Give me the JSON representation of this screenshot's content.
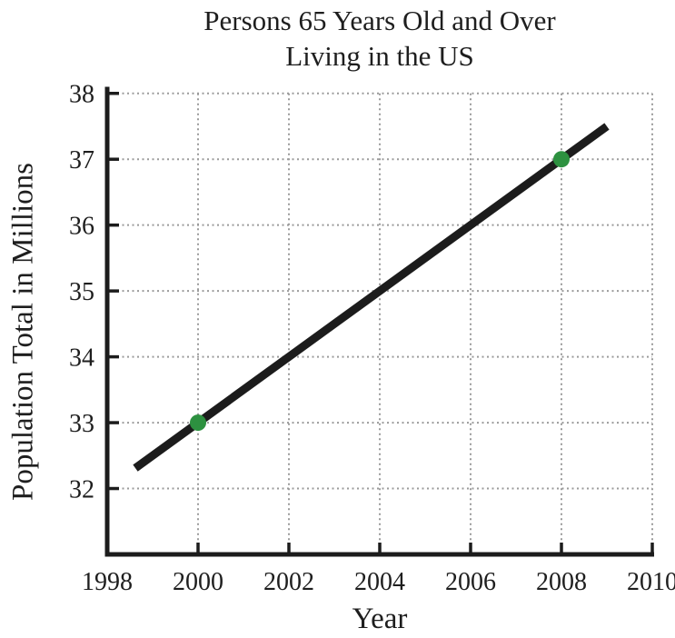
{
  "chart_data": {
    "type": "line",
    "title": "Persons 65 Years Old and Over Living in the US",
    "title_lines": [
      "Persons 65 Years Old and Over",
      "Living in the US"
    ],
    "xlabel": "Year",
    "ylabel": "Population Total in Millions",
    "xlim": [
      1998,
      2010
    ],
    "ylim": [
      31,
      38.1
    ],
    "x_ticks": [
      1998,
      2000,
      2002,
      2004,
      2006,
      2008,
      2010
    ],
    "y_ticks": [
      32,
      33,
      34,
      35,
      36,
      37,
      38
    ],
    "grid": true,
    "legend": false,
    "series": [
      {
        "name": "population-trend-line",
        "x": [
          1998.62,
          2009.0
        ],
        "y": [
          32.31,
          37.5
        ],
        "slope_per_year": 0.5
      }
    ],
    "points": [
      {
        "x": 2000,
        "y": 33
      },
      {
        "x": 2008,
        "y": 37
      }
    ],
    "colors": {
      "line": "#1c1c1c",
      "point": "#2d9140",
      "grid": "#9a9a9a",
      "axis": "#1c1c1c",
      "text": "#1e1e1e"
    }
  }
}
